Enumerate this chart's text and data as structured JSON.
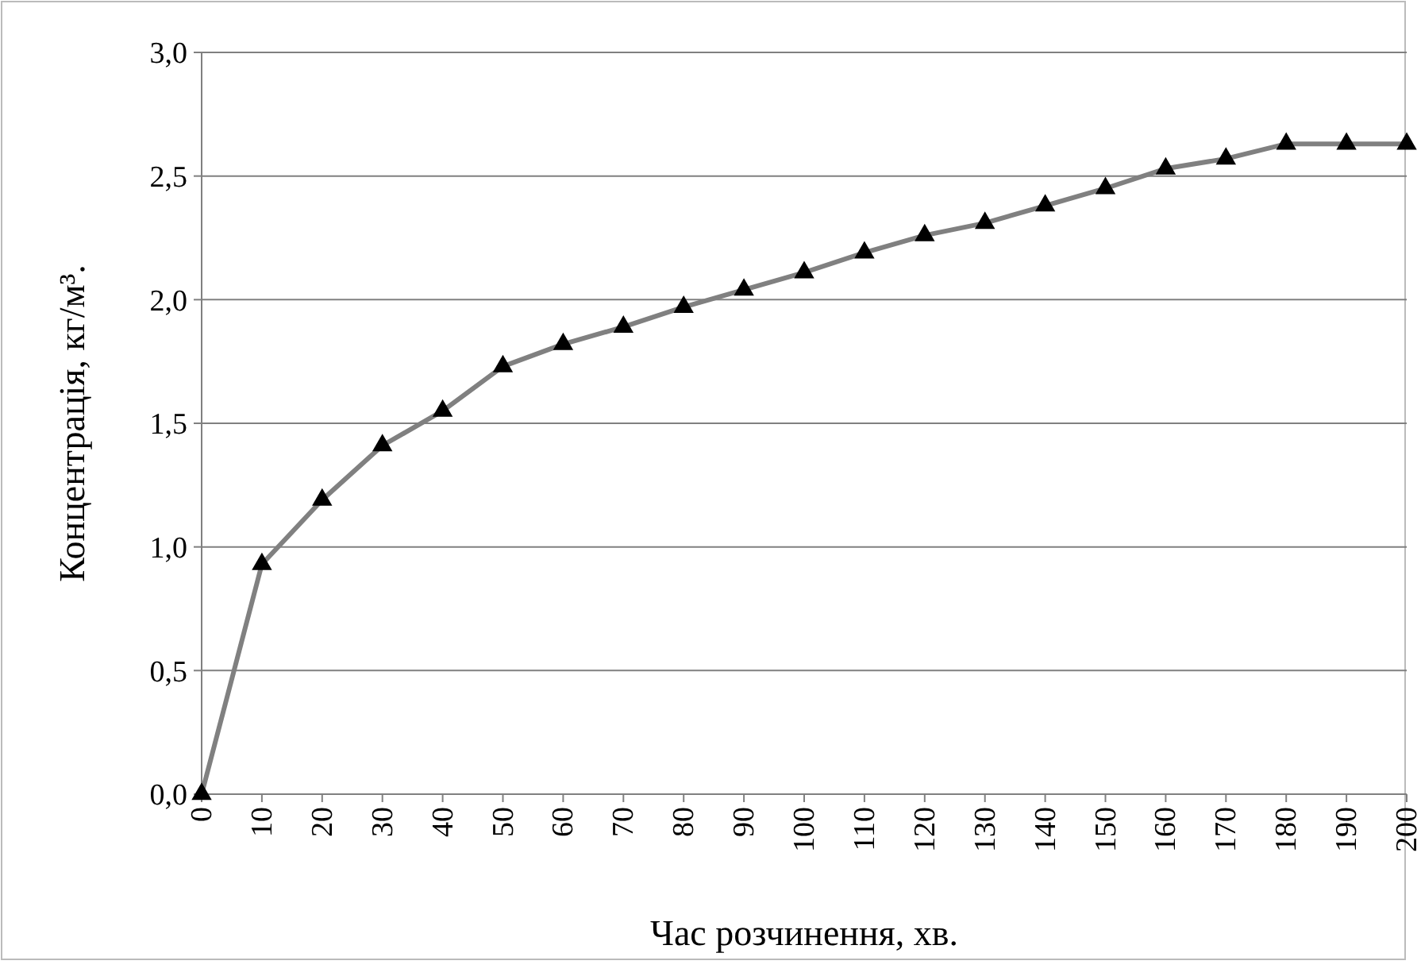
{
  "chart_data": {
    "type": "line",
    "xlabel": "Час розчинення, хв.",
    "ylabel": "Концентрація, кг/м³.",
    "categories": [
      "0",
      "10",
      "20",
      "30",
      "40",
      "50",
      "60",
      "70",
      "80",
      "90",
      "100",
      "110",
      "120",
      "130",
      "140",
      "150",
      "160",
      "170",
      "180",
      "190",
      "200"
    ],
    "series": [
      {
        "color": "#808080",
        "values": [
          0,
          0.93,
          1.19,
          1.41,
          1.55,
          1.73,
          1.82,
          1.89,
          1.97,
          2.04,
          2.11,
          2.19,
          2.26,
          2.31,
          2.38,
          2.45,
          2.53,
          2.57,
          2.63,
          2.63,
          2.63
        ]
      }
    ],
    "ylim": [
      0,
      3
    ],
    "yticks": [
      {
        "value": 0,
        "label": "0,0"
      },
      {
        "value": 0.5,
        "label": "0,5"
      },
      {
        "value": 1,
        "label": "1,0"
      },
      {
        "value": 1.5,
        "label": "1,5"
      },
      {
        "value": 2,
        "label": "2,0"
      },
      {
        "value": 2.5,
        "label": "2,5"
      },
      {
        "value": 3,
        "label": "3,0"
      }
    ],
    "grid": "y",
    "marker": "triangle",
    "line_style": "solid"
  }
}
